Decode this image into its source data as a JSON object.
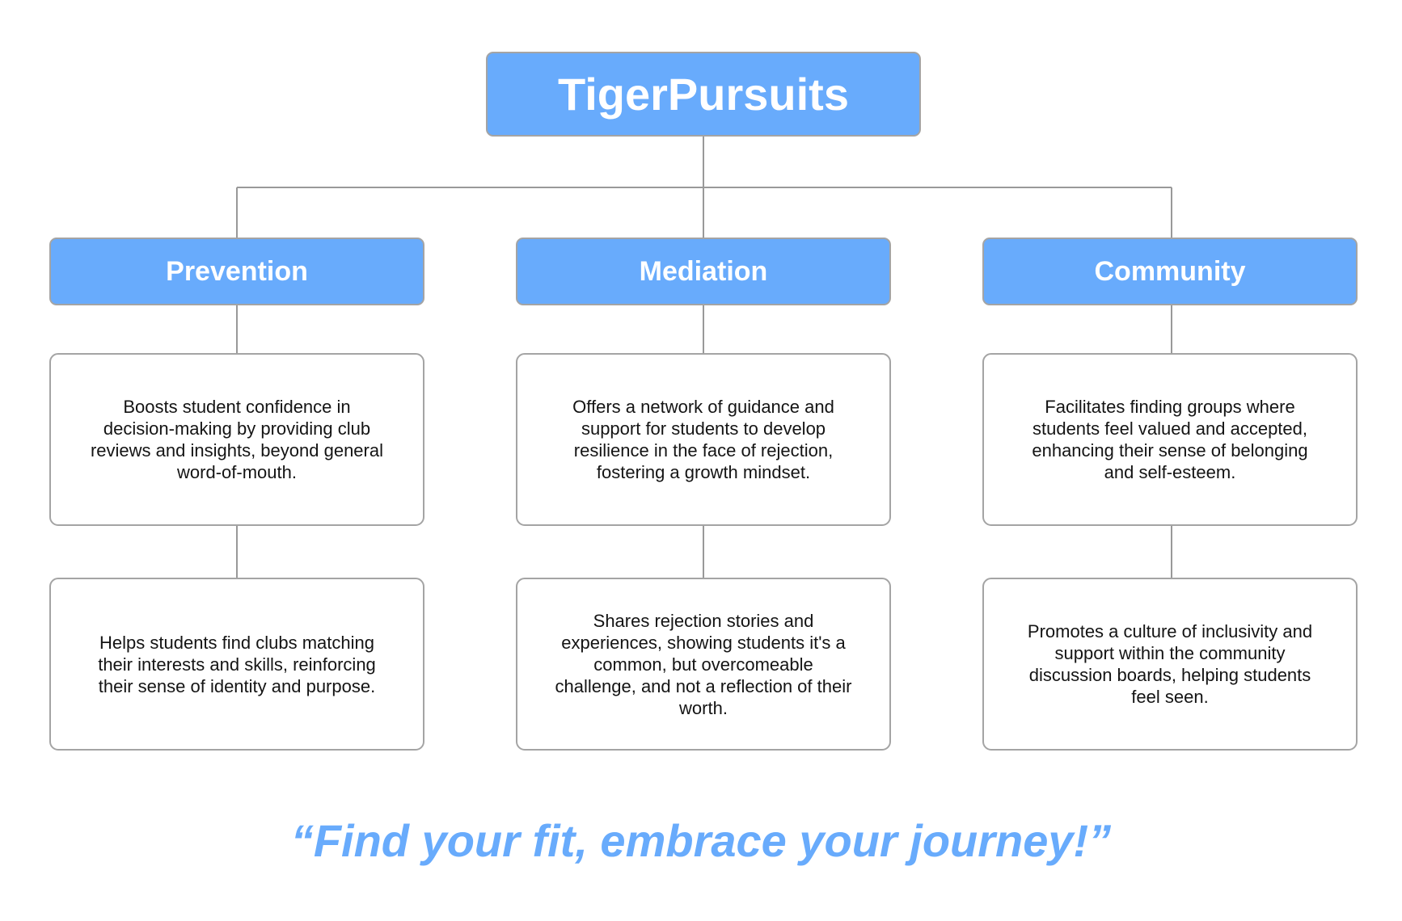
{
  "colors": {
    "box_fill": "#68abfc",
    "border": "#a4a4a4",
    "connector": "#999999",
    "tagline": "#68abfc",
    "box_text": "#ffffff"
  },
  "root": {
    "title": "TigerPursuits"
  },
  "branches": [
    {
      "title": "Prevention",
      "items": [
        "Boosts student confidence in decision-making by providing club reviews and insights, beyond general word-of-mouth.",
        "Helps students find clubs matching their interests and skills, reinforcing their sense of identity and purpose."
      ]
    },
    {
      "title": "Mediation",
      "items": [
        "Offers a network of guidance and support for students to develop resilience in the face of rejection, fostering a growth mindset.",
        "Shares rejection stories and experiences, showing students it's a common, but overcomeable challenge, and not a reflection of their worth."
      ]
    },
    {
      "title": "Community",
      "items": [
        "Facilitates finding groups where students feel valued and accepted, enhancing their sense of belonging and self-esteem.",
        "Promotes a culture of inclusivity and support within the community discussion boards, helping students feel seen."
      ]
    }
  ],
  "tagline": "“Find your fit, embrace your journey!”"
}
